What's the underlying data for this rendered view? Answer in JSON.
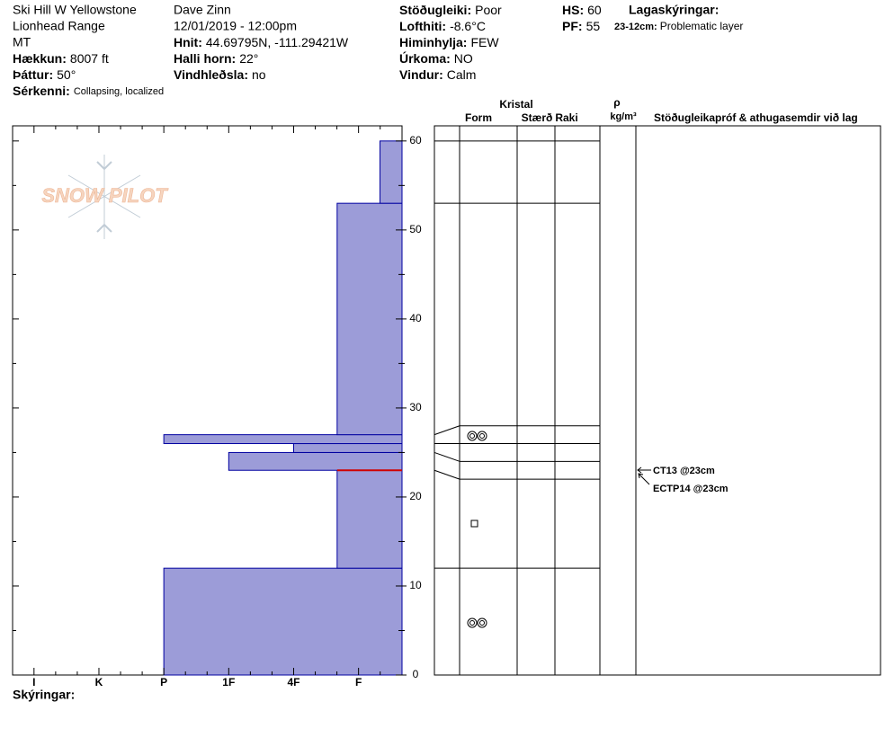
{
  "header": {
    "columns": [
      [
        {
          "text": "Ski Hill W Yellowstone"
        },
        {
          "text": "Lionhead Range"
        },
        {
          "text": "MT"
        },
        {
          "label": "Hækkun:",
          "value": "8007 ft"
        },
        {
          "label": "Þáttur:",
          "value": "50°"
        },
        {
          "label": "Sérkenni:",
          "value": "Collapsing, localized"
        }
      ],
      [
        {
          "text": "Dave Zinn"
        },
        {
          "text": "12/01/2019 - 12:00pm"
        },
        {
          "label": "Hnit:",
          "value": "44.69795N, -111.29421W"
        },
        {
          "label": "Halli horn:",
          "value": "22°"
        },
        {
          "label": "Vindhleðsla:",
          "value": "no"
        }
      ],
      [
        {
          "label": "Stöðugleiki:",
          "value": "Poor"
        },
        {
          "label": "Lofthiti:",
          "value": "-8.6°C"
        },
        {
          "label": "Himinhylja:",
          "value": "FEW"
        },
        {
          "label": "Úrkoma:",
          "value": "NO"
        },
        {
          "label": "Vindur:",
          "value": "Calm"
        }
      ],
      [
        {
          "label": "HS:",
          "value": "60"
        },
        {
          "label": "PF:",
          "value": "55"
        }
      ]
    ],
    "layer_notes_title": "Lagaskýringar:",
    "layer_notes": [
      {
        "label": "23-12cm:",
        "value": "Problematic layer"
      }
    ]
  },
  "logo": "SNOW PILOT",
  "chart_data": {
    "type": "snow-profile",
    "ylim": [
      0,
      61.7
    ],
    "yticks": [
      0,
      10,
      20,
      30,
      40,
      50,
      60
    ],
    "xlim": [
      -0.33,
      5.67
    ],
    "xticks": [
      {
        "value": 0,
        "label": "I"
      },
      {
        "value": 1,
        "label": "K"
      },
      {
        "value": 2,
        "label": "P"
      },
      {
        "value": 3,
        "label": "1F"
      },
      {
        "value": 4,
        "label": "4F"
      },
      {
        "value": 5,
        "label": "F"
      }
    ],
    "color": "#9c9cd8",
    "layers": [
      {
        "bottom": 0,
        "top": 12,
        "hardness": 2
      },
      {
        "bottom": 12,
        "top": 23,
        "hardness": 4.67
      },
      {
        "bottom": 23,
        "top": 25,
        "hardness": 3
      },
      {
        "bottom": 25,
        "top": 26,
        "hardness": 4
      },
      {
        "bottom": 26,
        "top": 27,
        "hardness": 2
      },
      {
        "bottom": 27,
        "top": 53,
        "hardness": 4.67
      },
      {
        "bottom": 53,
        "top": 60,
        "hardness": 5.33
      }
    ]
  },
  "panel": {
    "crystal": "Kristal",
    "form": "Form",
    "size": "Stærð",
    "moisture": "Raki",
    "density_symbol": "ρ",
    "density_unit": "kg/m³",
    "comments": "Stöðugleikapróf & athugasemdir við lag",
    "tests": [
      "CT13 @23cm",
      "ECTP14 @23cm"
    ]
  },
  "footer": "Skýringar:"
}
